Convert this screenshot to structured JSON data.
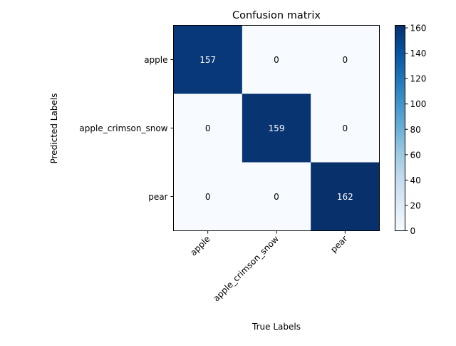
{
  "chart_data": {
    "type": "heatmap",
    "title": "Confusion matrix",
    "xlabel": "True Labels",
    "ylabel": "Predicted Labels",
    "x_categories": [
      "apple",
      "apple_crimson_snow",
      "pear"
    ],
    "y_categories": [
      "apple",
      "apple_crimson_snow",
      "pear"
    ],
    "values": [
      [
        157,
        0,
        0
      ],
      [
        0,
        159,
        0
      ],
      [
        0,
        0,
        162
      ]
    ],
    "colormap": "Blues",
    "colorbar": {
      "min": 0,
      "max": 162,
      "ticks": [
        "0",
        "20",
        "40",
        "60",
        "80",
        "100",
        "120",
        "140",
        "160"
      ]
    },
    "cell_label_colors": {
      "light_bg": "#000000",
      "dark_bg": "#ffffff"
    }
  }
}
